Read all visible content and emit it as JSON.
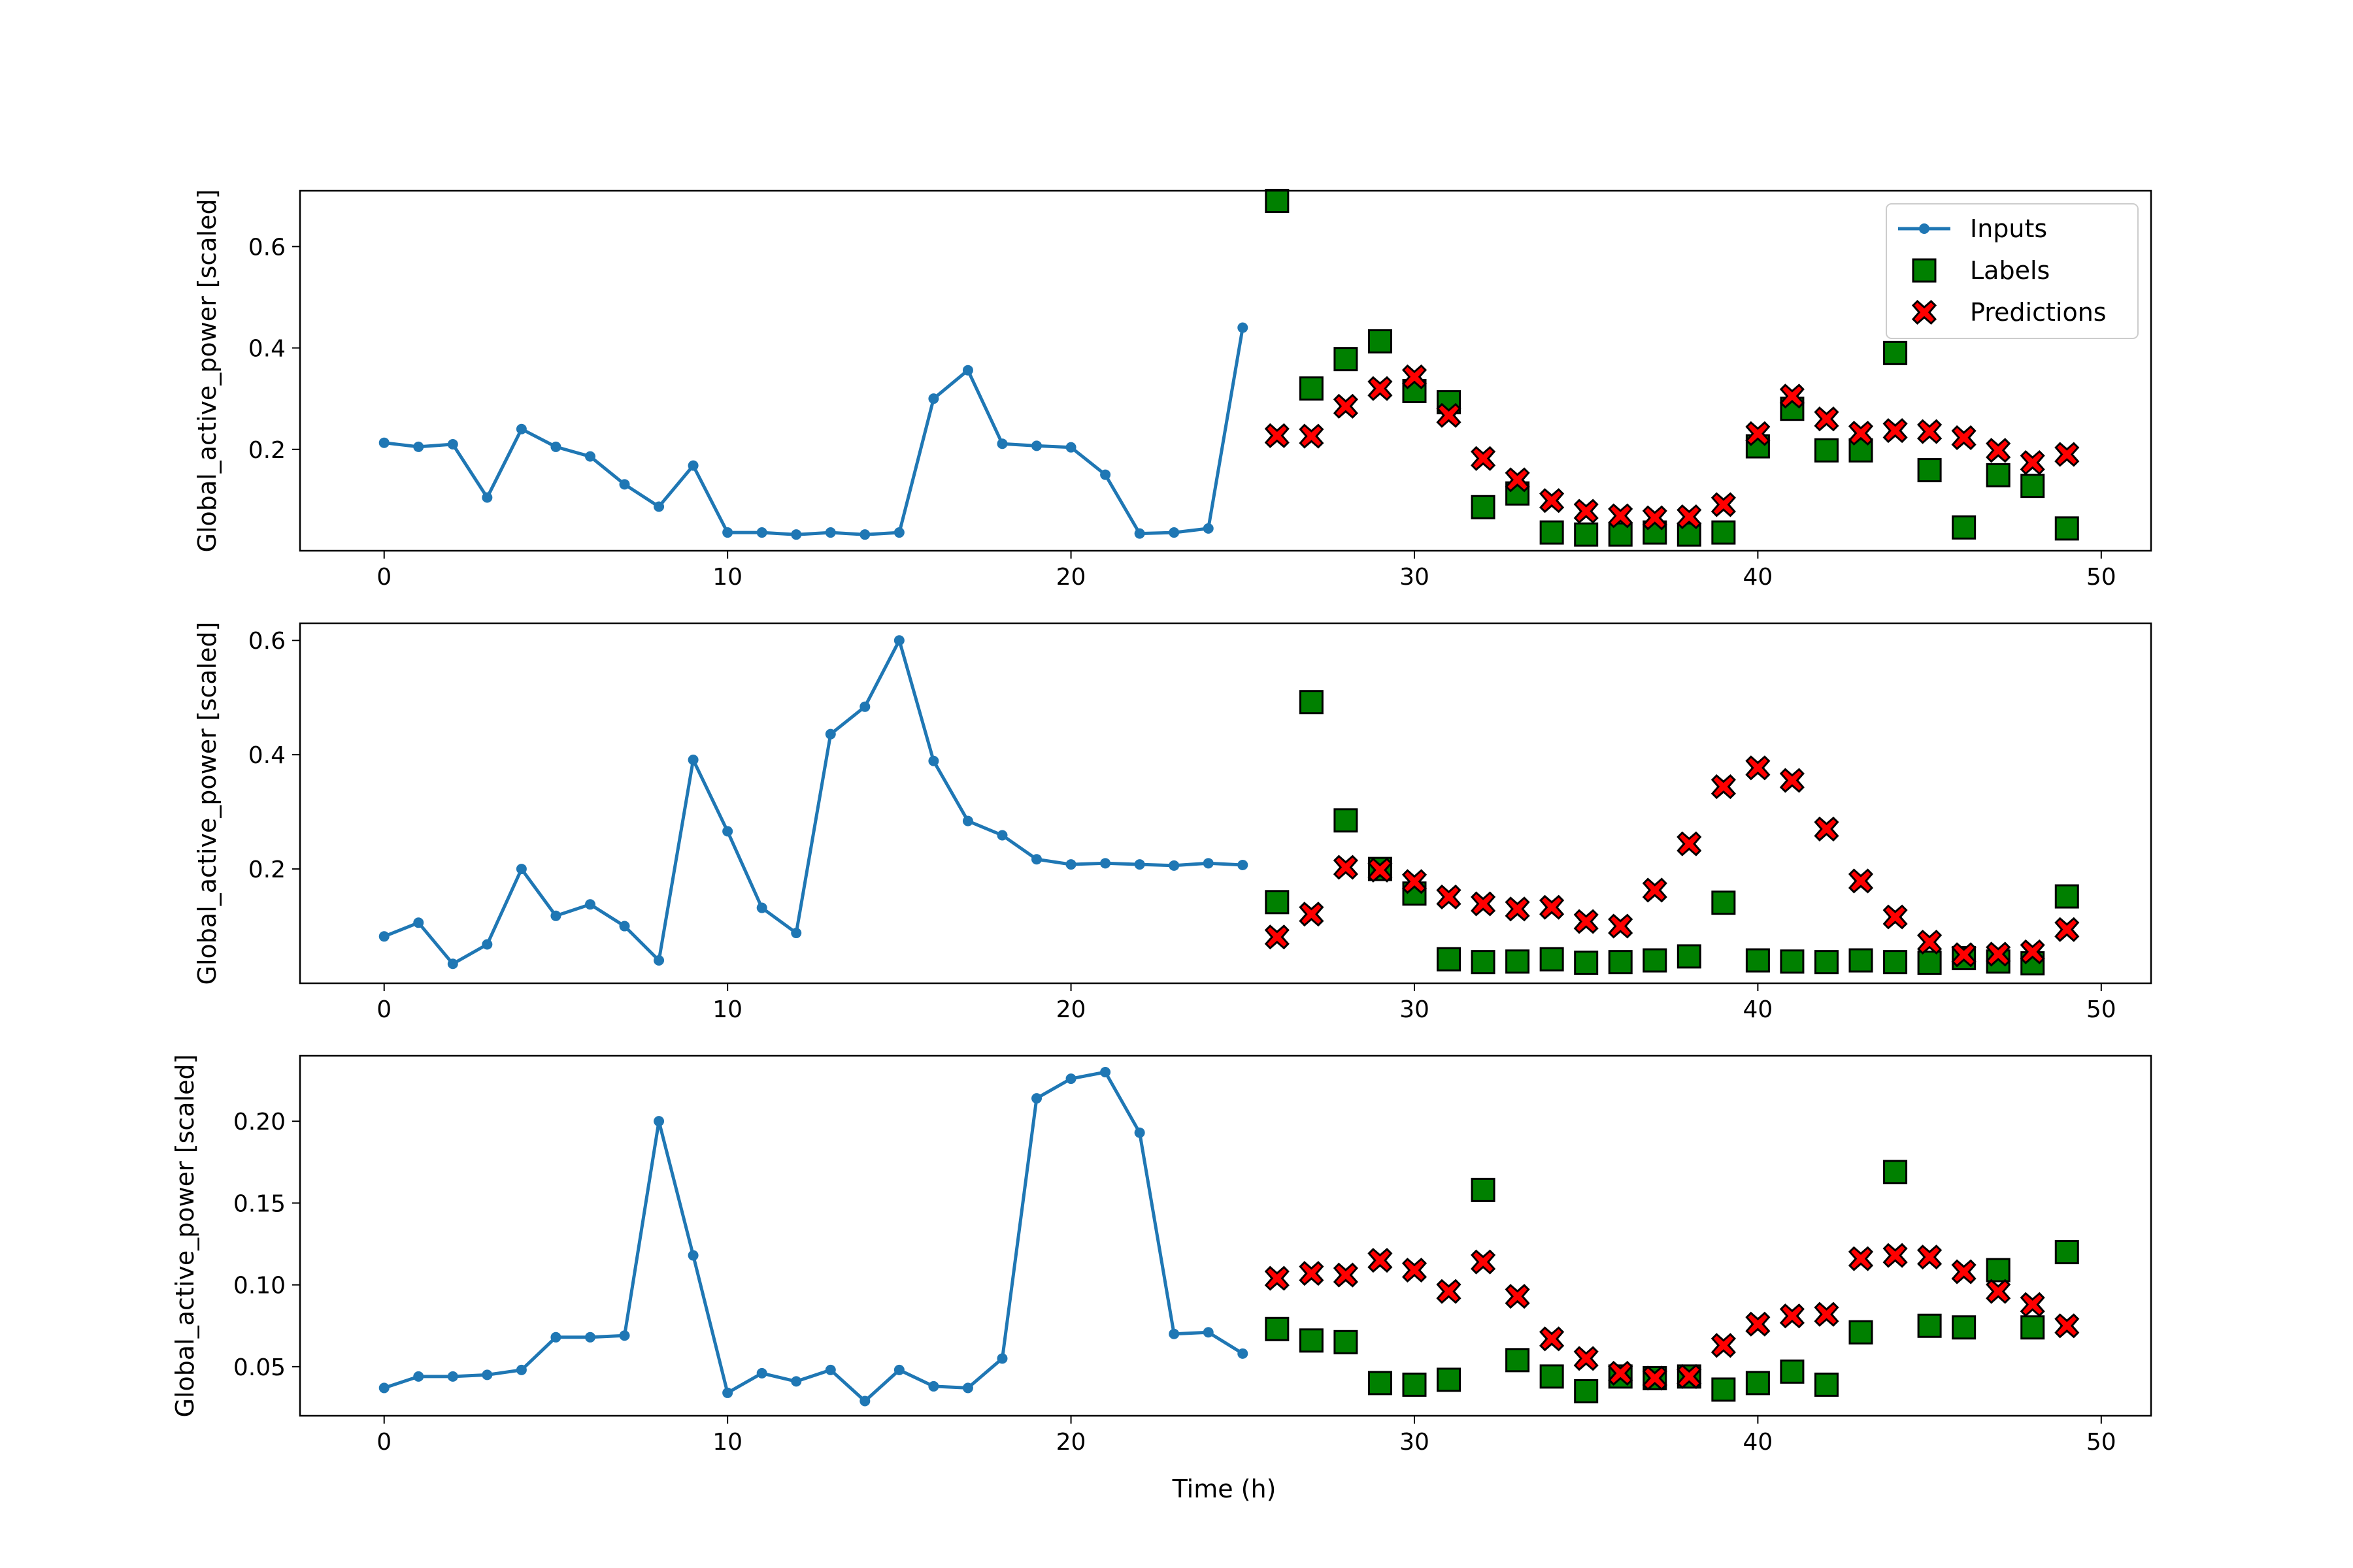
{
  "figure": {
    "xlabel": "Time (h)",
    "ylabel": "Global_active_power [scaled]"
  },
  "legend": {
    "entries": [
      "Inputs",
      "Labels",
      "Predictions"
    ],
    "placement": "top-right"
  },
  "colors": {
    "inputs": "#1f77b4",
    "labels": "#008000",
    "predictions": "#ff0000",
    "marker_edge": "#000000"
  },
  "chart_data": [
    {
      "type": "line",
      "xlabel": "",
      "ylabel": "Global_active_power [scaled]",
      "xlim": [
        -2.45,
        51.45
      ],
      "ylim": [
        0.0,
        0.71
      ],
      "xticks": [
        0,
        10,
        20,
        30,
        40,
        50
      ],
      "yticks": [
        0.2,
        0.4,
        0.6
      ],
      "ytick_labels": [
        "0.2",
        "0.4",
        "0.6"
      ],
      "legend": [
        "Inputs",
        "Labels",
        "Predictions"
      ],
      "series": [
        {
          "name": "Inputs",
          "x": [
            0,
            1,
            2,
            3,
            4,
            5,
            6,
            7,
            8,
            9,
            10,
            11,
            12,
            13,
            14,
            15,
            16,
            17,
            18,
            19,
            20,
            21,
            22,
            23,
            24,
            25
          ],
          "values": [
            0.213,
            0.205,
            0.21,
            0.105,
            0.24,
            0.205,
            0.186,
            0.131,
            0.087,
            0.168,
            0.036,
            0.036,
            0.032,
            0.036,
            0.032,
            0.036,
            0.3,
            0.356,
            0.211,
            0.207,
            0.204,
            0.15,
            0.034,
            0.036,
            0.044,
            0.44
          ]
        },
        {
          "name": "Labels",
          "x": [
            26,
            27,
            28,
            29,
            30,
            31,
            32,
            33,
            34,
            35,
            36,
            37,
            38,
            39,
            40,
            41,
            42,
            43,
            44,
            45,
            46,
            47,
            48,
            49
          ],
          "values": [
            0.69,
            0.32,
            0.378,
            0.413,
            0.315,
            0.293,
            0.086,
            0.113,
            0.036,
            0.032,
            0.032,
            0.036,
            0.032,
            0.036,
            0.206,
            0.28,
            0.198,
            0.198,
            0.39,
            0.159,
            0.046,
            0.149,
            0.128,
            0.044
          ]
        },
        {
          "name": "Predictions",
          "x": [
            26,
            27,
            28,
            29,
            30,
            31,
            32,
            33,
            34,
            35,
            36,
            37,
            38,
            39,
            40,
            41,
            42,
            43,
            44,
            45,
            46,
            47,
            48,
            49
          ],
          "values": [
            0.227,
            0.226,
            0.285,
            0.32,
            0.343,
            0.267,
            0.182,
            0.14,
            0.099,
            0.078,
            0.069,
            0.065,
            0.067,
            0.091,
            0.231,
            0.305,
            0.26,
            0.232,
            0.237,
            0.235,
            0.223,
            0.198,
            0.174,
            0.19
          ]
        }
      ]
    },
    {
      "type": "line",
      "xlabel": "",
      "ylabel": "Global_active_power [scaled]",
      "xlim": [
        -2.45,
        51.45
      ],
      "ylim": [
        0.0,
        0.63
      ],
      "xticks": [
        0,
        10,
        20,
        30,
        40,
        50
      ],
      "yticks": [
        0.2,
        0.4,
        0.6
      ],
      "ytick_labels": [
        "0.2",
        "0.4",
        "0.6"
      ],
      "series": [
        {
          "name": "Inputs",
          "x": [
            0,
            1,
            2,
            3,
            4,
            5,
            6,
            7,
            8,
            9,
            10,
            11,
            12,
            13,
            14,
            15,
            16,
            17,
            18,
            19,
            20,
            21,
            22,
            23,
            24,
            25
          ],
          "values": [
            0.082,
            0.106,
            0.034,
            0.068,
            0.2,
            0.118,
            0.138,
            0.1,
            0.04,
            0.391,
            0.266,
            0.132,
            0.088,
            0.436,
            0.484,
            0.6,
            0.389,
            0.284,
            0.259,
            0.217,
            0.208,
            0.21,
            0.208,
            0.206,
            0.21,
            0.207
          ]
        },
        {
          "name": "Labels",
          "x": [
            26,
            27,
            28,
            29,
            30,
            31,
            32,
            33,
            34,
            35,
            36,
            37,
            38,
            39,
            40,
            41,
            42,
            43,
            44,
            45,
            46,
            47,
            48,
            49
          ],
          "values": [
            0.142,
            0.492,
            0.285,
            0.2,
            0.157,
            0.042,
            0.037,
            0.038,
            0.042,
            0.036,
            0.037,
            0.04,
            0.047,
            0.141,
            0.04,
            0.038,
            0.037,
            0.04,
            0.037,
            0.036,
            0.044,
            0.038,
            0.035,
            0.152
          ]
        },
        {
          "name": "Predictions",
          "x": [
            26,
            27,
            28,
            29,
            30,
            31,
            32,
            33,
            34,
            35,
            36,
            37,
            38,
            39,
            40,
            41,
            42,
            43,
            44,
            45,
            46,
            47,
            48,
            49
          ],
          "values": [
            0.081,
            0.121,
            0.203,
            0.198,
            0.178,
            0.151,
            0.139,
            0.13,
            0.133,
            0.108,
            0.1,
            0.163,
            0.244,
            0.344,
            0.377,
            0.355,
            0.27,
            0.179,
            0.116,
            0.072,
            0.05,
            0.051,
            0.055,
            0.094
          ]
        }
      ]
    },
    {
      "type": "line",
      "xlabel": "Time (h)",
      "ylabel": "Global_active_power [scaled]",
      "xlim": [
        -2.45,
        51.45
      ],
      "ylim": [
        0.02,
        0.24
      ],
      "xticks": [
        0,
        10,
        20,
        30,
        40,
        50
      ],
      "yticks": [
        0.05,
        0.1,
        0.15,
        0.2
      ],
      "ytick_labels": [
        "0.05",
        "0.10",
        "0.15",
        "0.20"
      ],
      "series": [
        {
          "name": "Inputs",
          "x": [
            0,
            1,
            2,
            3,
            4,
            5,
            6,
            7,
            8,
            9,
            10,
            11,
            12,
            13,
            14,
            15,
            16,
            17,
            18,
            19,
            20,
            21,
            22,
            23,
            24,
            25
          ],
          "values": [
            0.037,
            0.044,
            0.044,
            0.045,
            0.048,
            0.068,
            0.068,
            0.069,
            0.2,
            0.118,
            0.034,
            0.046,
            0.041,
            0.048,
            0.029,
            0.048,
            0.038,
            0.037,
            0.055,
            0.214,
            0.226,
            0.23,
            0.193,
            0.07,
            0.071,
            0.058
          ]
        },
        {
          "name": "Labels",
          "x": [
            26,
            27,
            28,
            29,
            30,
            31,
            32,
            33,
            34,
            35,
            36,
            37,
            38,
            39,
            40,
            41,
            42,
            43,
            44,
            45,
            46,
            47,
            48,
            49
          ],
          "values": [
            0.073,
            0.066,
            0.065,
            0.04,
            0.039,
            0.042,
            0.158,
            0.054,
            0.044,
            0.035,
            0.044,
            0.043,
            0.044,
            0.036,
            0.04,
            0.047,
            0.039,
            0.071,
            0.169,
            0.075,
            0.074,
            0.109,
            0.074,
            0.12
          ]
        },
        {
          "name": "Predictions",
          "x": [
            26,
            27,
            28,
            29,
            30,
            31,
            32,
            33,
            34,
            35,
            36,
            37,
            38,
            39,
            40,
            41,
            42,
            43,
            44,
            45,
            46,
            47,
            48,
            49
          ],
          "values": [
            0.104,
            0.107,
            0.106,
            0.115,
            0.109,
            0.096,
            0.114,
            0.093,
            0.067,
            0.055,
            0.046,
            0.043,
            0.044,
            0.063,
            0.076,
            0.081,
            0.082,
            0.116,
            0.118,
            0.117,
            0.108,
            0.096,
            0.088,
            0.075
          ]
        }
      ]
    }
  ]
}
